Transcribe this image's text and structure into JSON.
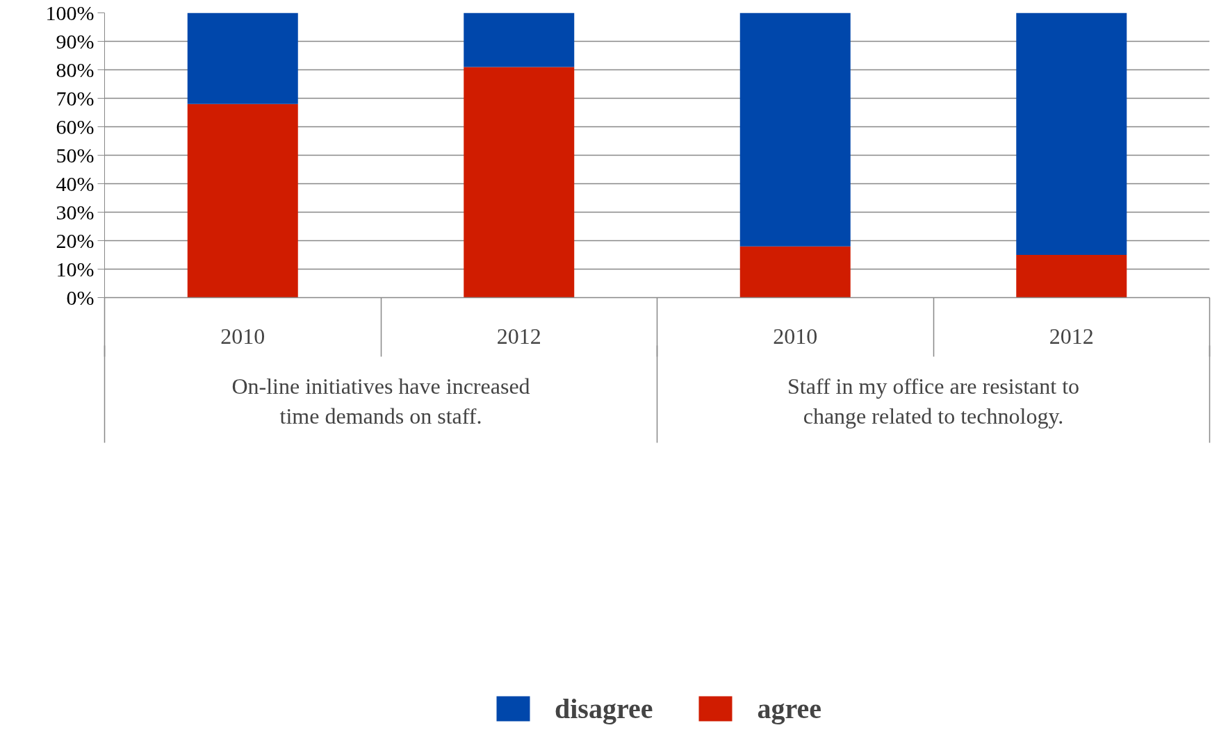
{
  "chart_data": {
    "type": "bar",
    "stacked": true,
    "categories": [
      "2010",
      "2012",
      "2010",
      "2012"
    ],
    "series": [
      {
        "name": "agree",
        "color": "#d01c00",
        "values": [
          68,
          81,
          18,
          15
        ]
      },
      {
        "name": "disagree",
        "color": "#0047ab",
        "values": [
          32,
          19,
          82,
          85
        ]
      }
    ],
    "annotations": [
      "On-line initiatives have increased time demands on staff.",
      "Staff in my office are resistant to change related to technology."
    ],
    "ylim": [
      0,
      100
    ],
    "yticks": [
      {
        "value": 0,
        "label": "0%"
      },
      {
        "value": 10,
        "label": "10%"
      },
      {
        "value": 20,
        "label": "20%"
      },
      {
        "value": 30,
        "label": "30%"
      },
      {
        "value": 40,
        "label": "40%"
      },
      {
        "value": 50,
        "label": "50%"
      },
      {
        "value": 60,
        "label": "60%"
      },
      {
        "value": 70,
        "label": "70%"
      },
      {
        "value": 80,
        "label": "80%"
      },
      {
        "value": 90,
        "label": "90%"
      },
      {
        "value": 100,
        "label": "100%"
      }
    ],
    "grid": "y",
    "legend": "bottom"
  }
}
